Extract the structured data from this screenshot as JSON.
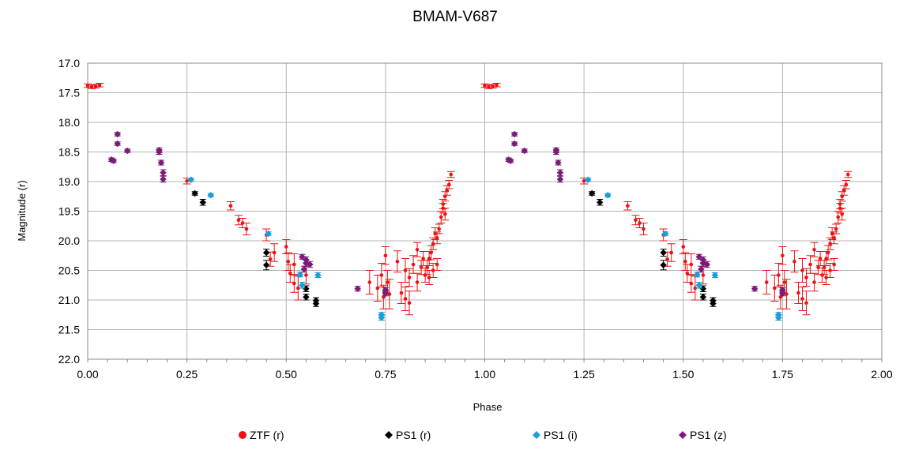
{
  "chart_data": {
    "type": "scatter",
    "title": "BMAM-V687",
    "xlabel": "Phase",
    "ylabel": "Magnitude (r)",
    "xlim": [
      0,
      2
    ],
    "ylim": [
      22.0,
      17.0
    ],
    "y_inverted": true,
    "grid": true,
    "legend_position": "bottom",
    "x_ticks": [
      "0.00",
      "0.25",
      "0.50",
      "0.75",
      "1.00",
      "1.25",
      "1.50",
      "1.75",
      "2.00"
    ],
    "y_ticks": [
      "17.0",
      "17.5",
      "18.0",
      "18.5",
      "19.0",
      "19.5",
      "20.0",
      "20.5",
      "21.0",
      "21.5",
      "22.0"
    ],
    "series": [
      {
        "name": "ZTF (r)",
        "color": "#ee1111",
        "marker": "circle",
        "points": [
          [
            0.0,
            17.38,
            0.03
          ],
          [
            0.01,
            17.4,
            0.03
          ],
          [
            0.02,
            17.39,
            0.03
          ],
          [
            0.03,
            17.37,
            0.03
          ],
          [
            0.25,
            18.99,
            0.05
          ],
          [
            0.36,
            19.41,
            0.07
          ],
          [
            0.38,
            19.65,
            0.08
          ],
          [
            0.39,
            19.7,
            0.08
          ],
          [
            0.4,
            19.8,
            0.1
          ],
          [
            0.45,
            19.9,
            0.1
          ],
          [
            0.46,
            20.31,
            0.12
          ],
          [
            0.47,
            20.2,
            0.15
          ],
          [
            0.5,
            20.1,
            0.12
          ],
          [
            0.505,
            20.35,
            0.15
          ],
          [
            0.51,
            20.55,
            0.15
          ],
          [
            0.52,
            20.4,
            0.18
          ],
          [
            0.52,
            20.72,
            0.15
          ],
          [
            0.53,
            20.8,
            0.2
          ],
          [
            0.55,
            20.58,
            0.15
          ],
          [
            0.71,
            20.7,
            0.2
          ],
          [
            0.73,
            20.8,
            0.22
          ],
          [
            0.74,
            20.58,
            0.2
          ],
          [
            0.745,
            20.95,
            0.2
          ],
          [
            0.75,
            20.25,
            0.15
          ],
          [
            0.755,
            20.7,
            0.2
          ],
          [
            0.76,
            20.9,
            0.25
          ],
          [
            0.78,
            20.35,
            0.18
          ],
          [
            0.79,
            20.88,
            0.18
          ],
          [
            0.8,
            20.5,
            0.2
          ],
          [
            0.8,
            20.98,
            0.2
          ],
          [
            0.81,
            20.62,
            0.15
          ],
          [
            0.81,
            21.05,
            0.2
          ],
          [
            0.82,
            20.4,
            0.15
          ],
          [
            0.83,
            20.15,
            0.12
          ],
          [
            0.83,
            20.7,
            0.15
          ],
          [
            0.84,
            20.45,
            0.12
          ],
          [
            0.845,
            20.3,
            0.12
          ],
          [
            0.85,
            20.58,
            0.12
          ],
          [
            0.855,
            20.45,
            0.12
          ],
          [
            0.86,
            20.3,
            0.12
          ],
          [
            0.86,
            20.62,
            0.12
          ],
          [
            0.865,
            20.2,
            0.12
          ],
          [
            0.87,
            20.5,
            0.12
          ],
          [
            0.87,
            20.05,
            0.1
          ],
          [
            0.875,
            19.88,
            0.1
          ],
          [
            0.88,
            20.4,
            0.1
          ],
          [
            0.88,
            19.95,
            0.1
          ],
          [
            0.885,
            19.8,
            0.08
          ],
          [
            0.89,
            19.6,
            0.1
          ],
          [
            0.895,
            19.45,
            0.08
          ],
          [
            0.895,
            19.38,
            0.08
          ],
          [
            0.9,
            19.55,
            0.1
          ],
          [
            0.9,
            19.25,
            0.08
          ],
          [
            0.905,
            19.15,
            0.08
          ],
          [
            0.91,
            19.05,
            0.07
          ],
          [
            0.915,
            18.88,
            0.05
          ]
        ]
      },
      {
        "name": "PS1 (r)",
        "color": "#000000",
        "marker": "diamond",
        "points": [
          [
            0.27,
            19.2,
            0.03
          ],
          [
            0.29,
            19.35,
            0.05
          ],
          [
            0.45,
            20.2,
            0.06
          ],
          [
            0.45,
            20.41,
            0.08
          ],
          [
            0.55,
            20.81,
            0.05
          ],
          [
            0.55,
            20.95,
            0.05
          ],
          [
            0.575,
            21.01,
            0.05
          ],
          [
            0.575,
            21.06,
            0.05
          ]
        ]
      },
      {
        "name": "PS1 (i)",
        "color": "#1a9ed8",
        "marker": "diamond",
        "points": [
          [
            0.26,
            18.97,
            0.03
          ],
          [
            0.31,
            19.23,
            0.03
          ],
          [
            0.455,
            19.88,
            0.03
          ],
          [
            0.535,
            20.57,
            0.04
          ],
          [
            0.54,
            20.75,
            0.05
          ],
          [
            0.58,
            20.58,
            0.04
          ],
          [
            0.74,
            21.25,
            0.04
          ],
          [
            0.74,
            21.3,
            0.04
          ]
        ]
      },
      {
        "name": "PS1 (z)",
        "color": "#7a1b78",
        "marker": "diamond",
        "points": [
          [
            0.06,
            18.63,
            0.03
          ],
          [
            0.065,
            18.65,
            0.03
          ],
          [
            0.075,
            18.2,
            0.03
          ],
          [
            0.075,
            18.36,
            0.03
          ],
          [
            0.1,
            18.48,
            0.03
          ],
          [
            0.18,
            18.47,
            0.04
          ],
          [
            0.18,
            18.5,
            0.04
          ],
          [
            0.185,
            18.68,
            0.04
          ],
          [
            0.19,
            18.85,
            0.05
          ],
          [
            0.19,
            18.96,
            0.05
          ],
          [
            0.54,
            20.27,
            0.04
          ],
          [
            0.55,
            20.32,
            0.05
          ],
          [
            0.55,
            20.38,
            0.05
          ],
          [
            0.545,
            20.48,
            0.05
          ],
          [
            0.56,
            20.4,
            0.05
          ],
          [
            0.68,
            20.81,
            0.04
          ],
          [
            0.75,
            20.83,
            0.04
          ],
          [
            0.75,
            20.89,
            0.04
          ]
        ]
      }
    ]
  },
  "legend": [
    {
      "label": "ZTF (r)",
      "color": "#ee1111",
      "marker": "circle"
    },
    {
      "label": "PS1 (r)",
      "color": "#000000",
      "marker": "diamond"
    },
    {
      "label": "PS1 (i)",
      "color": "#1a9ed8",
      "marker": "diamond"
    },
    {
      "label": "PS1 (z)",
      "color": "#7a1b78",
      "marker": "diamond"
    }
  ]
}
